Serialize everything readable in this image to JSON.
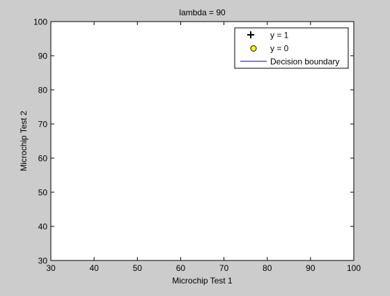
{
  "chart_data": {
    "type": "scatter",
    "title": "lambda = 90",
    "xlabel": "Microchip Test 1",
    "ylabel": "Microchip Test 2",
    "xlim": [
      30,
      100
    ],
    "ylim": [
      30,
      100
    ],
    "xticks": [
      30,
      40,
      50,
      60,
      70,
      80,
      90,
      100
    ],
    "yticks": [
      30,
      40,
      50,
      60,
      70,
      80,
      90,
      100
    ],
    "grid": false,
    "legend_position": "top-right",
    "series": [
      {
        "name": "y = 1",
        "marker": "plus",
        "color": "#000000",
        "points": []
      },
      {
        "name": "y = 0",
        "marker": "circle",
        "color": "#ffff00",
        "edge_color": "#000000",
        "points": []
      },
      {
        "name": "Decision boundary",
        "marker": "line",
        "color": "#000080",
        "points": []
      }
    ]
  }
}
